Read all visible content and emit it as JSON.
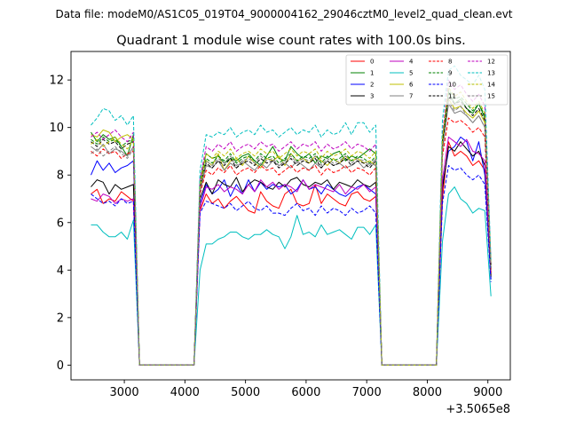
{
  "suptitle": "Data file: modeM0/AS1C05_019T04_9000004162_29046cztM0_level2_quad_clean.evt",
  "chart_data": {
    "type": "line",
    "title": "Quadrant 1 module wise count rates with 100.0s bins.",
    "xlabel": "",
    "ylabel": "",
    "x_offset_label": "+3.5065e8",
    "xlim": [
      2120,
      9370
    ],
    "ylim": [
      -0.62,
      13.2
    ],
    "xticks": [
      3000,
      4000,
      5000,
      6000,
      7000,
      8000,
      9000
    ],
    "xtick_labels": [
      "3000",
      "4000",
      "5000",
      "6000",
      "7000",
      "8000",
      "9000"
    ],
    "yticks": [
      0,
      2,
      4,
      6,
      8,
      10,
      12
    ],
    "ytick_labels": [
      "0",
      "2",
      "4",
      "6",
      "8",
      "10",
      "12"
    ],
    "legend": {
      "placement": "top-right",
      "columns": 4
    },
    "x": [
      2450,
      2550,
      2650,
      2750,
      2850,
      2950,
      3050,
      3150,
      3250,
      3350,
      3450,
      3550,
      3650,
      3750,
      3850,
      3950,
      4050,
      4150,
      4250,
      4350,
      4450,
      4550,
      4650,
      4750,
      4850,
      4950,
      5050,
      5150,
      5250,
      5350,
      5450,
      5550,
      5650,
      5750,
      5850,
      5950,
      6050,
      6150,
      6250,
      6350,
      6450,
      6550,
      6650,
      6750,
      6850,
      6950,
      7050,
      7150,
      7250,
      7350,
      7450,
      7550,
      7650,
      7750,
      7850,
      7950,
      8050,
      8150,
      8250,
      8350,
      8450,
      8550,
      8650,
      8750,
      8850,
      8950,
      9050
    ],
    "series": [
      {
        "name": "0",
        "color": "#ff0000",
        "dash": "solid",
        "values": [
          7.2,
          7.4,
          6.8,
          7.0,
          6.9,
          7.3,
          7.1,
          6.9,
          0,
          0,
          0,
          0,
          0,
          0,
          0,
          0,
          0,
          0,
          6.5,
          7.2,
          6.8,
          7.0,
          6.6,
          6.9,
          7.1,
          6.8,
          6.5,
          6.4,
          7.3,
          6.9,
          6.7,
          6.6,
          7.2,
          7.4,
          6.8,
          6.7,
          6.8,
          7.6,
          6.8,
          7.2,
          7.0,
          6.8,
          6.7,
          7.2,
          7.3,
          7.0,
          6.9,
          7.1,
          0,
          0,
          0,
          0,
          0,
          0,
          0,
          0,
          0,
          0,
          7.0,
          9.4,
          8.8,
          9.0,
          8.8,
          8.4,
          8.6,
          8.2,
          3.8
        ]
      },
      {
        "name": "1",
        "color": "#008000",
        "dash": "solid",
        "values": [
          9.8,
          9.4,
          9.7,
          9.5,
          9.6,
          9.2,
          8.8,
          9.7,
          0,
          0,
          0,
          0,
          0,
          0,
          0,
          0,
          0,
          0,
          7.8,
          8.9,
          8.7,
          8.8,
          8.5,
          8.7,
          8.6,
          8.8,
          8.9,
          8.6,
          8.4,
          8.8,
          9.2,
          8.7,
          8.6,
          9.2,
          8.9,
          8.7,
          8.9,
          8.5,
          8.8,
          8.7,
          8.9,
          9.0,
          8.6,
          8.8,
          8.7,
          8.9,
          9.1,
          8.9,
          0,
          0,
          0,
          0,
          0,
          0,
          0,
          0,
          0,
          0,
          9.5,
          11.5,
          11.0,
          11.2,
          10.8,
          10.6,
          11.0,
          10.4,
          4.0
        ]
      },
      {
        "name": "2",
        "color": "#0000ff",
        "dash": "solid",
        "values": [
          8.0,
          8.6,
          8.2,
          8.5,
          8.1,
          8.3,
          8.4,
          8.6,
          0,
          0,
          0,
          0,
          0,
          0,
          0,
          0,
          0,
          0,
          6.8,
          7.6,
          7.2,
          7.4,
          7.8,
          7.1,
          7.6,
          7.2,
          7.8,
          7.3,
          7.7,
          7.4,
          7.6,
          7.5,
          7.6,
          7.2,
          7.4,
          7.8,
          7.4,
          7.5,
          7.2,
          7.6,
          7.4,
          7.2,
          7.1,
          7.3,
          7.5,
          7.6,
          7.4,
          7.2,
          0,
          0,
          0,
          0,
          0,
          0,
          0,
          0,
          0,
          0,
          7.6,
          9.0,
          9.2,
          9.6,
          9.4,
          8.6,
          9.4,
          8.0,
          3.6
        ]
      },
      {
        "name": "3",
        "color": "#000000",
        "dash": "solid",
        "values": [
          7.5,
          7.8,
          7.7,
          7.2,
          7.6,
          7.4,
          7.5,
          7.6,
          0,
          0,
          0,
          0,
          0,
          0,
          0,
          0,
          0,
          0,
          7.0,
          7.7,
          7.2,
          7.8,
          7.6,
          7.5,
          7.9,
          7.3,
          7.6,
          7.8,
          7.7,
          7.5,
          7.4,
          7.7,
          7.5,
          7.8,
          7.9,
          7.6,
          7.5,
          7.7,
          7.6,
          7.8,
          7.4,
          7.7,
          7.6,
          7.5,
          7.8,
          7.6,
          7.5,
          7.7,
          0,
          0,
          0,
          0,
          0,
          0,
          0,
          0,
          0,
          0,
          7.4,
          9.2,
          9.0,
          9.4,
          9.1,
          8.8,
          9.0,
          8.4,
          3.7
        ]
      },
      {
        "name": "4",
        "color": "#bf00bf",
        "dash": "solid",
        "values": [
          7.0,
          6.9,
          7.2,
          7.1,
          6.8,
          7.0,
          6.9,
          7.0,
          0,
          0,
          0,
          0,
          0,
          0,
          0,
          0,
          0,
          0,
          6.6,
          7.5,
          7.4,
          7.6,
          7.3,
          7.5,
          7.4,
          7.2,
          7.6,
          7.3,
          7.8,
          7.5,
          7.7,
          7.4,
          7.6,
          7.5,
          7.3,
          7.8,
          7.4,
          7.6,
          7.5,
          7.4,
          7.3,
          7.6,
          7.2,
          7.5,
          7.4,
          7.6,
          7.3,
          7.5,
          0,
          0,
          0,
          0,
          0,
          0,
          0,
          0,
          0,
          0,
          7.8,
          9.6,
          9.4,
          9.2,
          9.5,
          9.0,
          8.9,
          8.6,
          3.9
        ]
      },
      {
        "name": "5",
        "color": "#00bfbf",
        "dash": "solid",
        "values": [
          5.9,
          5.9,
          5.6,
          5.4,
          5.4,
          5.6,
          5.3,
          6.1,
          0,
          0,
          0,
          0,
          0,
          0,
          0,
          0,
          0,
          0,
          4.0,
          5.1,
          5.1,
          5.3,
          5.4,
          5.6,
          5.6,
          5.4,
          5.3,
          5.5,
          5.5,
          5.7,
          5.5,
          5.4,
          4.9,
          5.4,
          6.3,
          5.5,
          5.6,
          5.4,
          5.9,
          5.5,
          5.6,
          5.7,
          5.5,
          5.3,
          5.8,
          5.8,
          5.5,
          5.9,
          0,
          0,
          0,
          0,
          0,
          0,
          0,
          0,
          0,
          0,
          5.2,
          7.2,
          7.5,
          7.0,
          6.8,
          6.4,
          6.6,
          6.5,
          2.9
        ]
      },
      {
        "name": "6",
        "color": "#bfbf00",
        "dash": "solid",
        "values": [
          9.7,
          9.6,
          9.9,
          9.8,
          9.4,
          9.6,
          9.7,
          9.5,
          0,
          0,
          0,
          0,
          0,
          0,
          0,
          0,
          0,
          0,
          7.5,
          8.6,
          8.4,
          8.9,
          8.2,
          8.6,
          8.7,
          8.4,
          8.8,
          8.5,
          8.3,
          8.7,
          8.6,
          8.8,
          8.4,
          8.9,
          8.6,
          8.7,
          8.5,
          8.8,
          8.6,
          8.4,
          8.7,
          8.5,
          8.8,
          8.6,
          8.7,
          8.5,
          8.6,
          8.4,
          0,
          0,
          0,
          0,
          0,
          0,
          0,
          0,
          0,
          0,
          9.2,
          11.2,
          10.8,
          10.9,
          10.6,
          10.4,
          10.7,
          10.2,
          4.1
        ]
      },
      {
        "name": "7",
        "color": "#808080",
        "dash": "solid",
        "values": [
          9.2,
          9.0,
          9.3,
          8.9,
          9.1,
          9.0,
          8.8,
          9.2,
          0,
          0,
          0,
          0,
          0,
          0,
          0,
          0,
          0,
          0,
          7.3,
          8.4,
          8.3,
          8.6,
          8.2,
          8.5,
          8.3,
          8.6,
          8.4,
          8.2,
          8.5,
          8.3,
          8.6,
          8.4,
          8.5,
          8.3,
          8.6,
          8.4,
          8.2,
          8.5,
          8.3,
          8.6,
          8.4,
          8.5,
          8.3,
          8.4,
          8.6,
          8.3,
          8.5,
          8.4,
          0,
          0,
          0,
          0,
          0,
          0,
          0,
          0,
          0,
          0,
          9.0,
          11.0,
          10.6,
          10.7,
          10.5,
          10.2,
          10.5,
          10.0,
          4.0
        ]
      },
      {
        "name": "8",
        "color": "#ff0000",
        "dash": "dashed",
        "values": [
          9.0,
          8.8,
          9.1,
          8.9,
          9.0,
          8.7,
          8.9,
          9.0,
          0,
          0,
          0,
          0,
          0,
          0,
          0,
          0,
          0,
          0,
          7.2,
          8.2,
          8.0,
          8.3,
          8.1,
          8.4,
          8.0,
          8.2,
          8.3,
          8.1,
          8.4,
          8.2,
          8.3,
          8.0,
          8.2,
          8.4,
          8.1,
          8.3,
          8.2,
          8.4,
          8.0,
          8.3,
          8.1,
          8.2,
          8.4,
          8.1,
          8.3,
          8.2,
          8.0,
          8.3,
          0,
          0,
          0,
          0,
          0,
          0,
          0,
          0,
          0,
          0,
          8.8,
          10.4,
          10.2,
          10.3,
          10.1,
          9.8,
          10.0,
          9.6,
          3.9
        ]
      },
      {
        "name": "9",
        "color": "#008000",
        "dash": "dashed",
        "values": [
          9.5,
          9.3,
          9.6,
          9.4,
          9.5,
          9.2,
          9.4,
          9.5,
          0,
          0,
          0,
          0,
          0,
          0,
          0,
          0,
          0,
          0,
          7.6,
          8.7,
          8.5,
          8.8,
          8.6,
          8.9,
          8.5,
          8.7,
          8.8,
          8.6,
          8.9,
          8.7,
          8.8,
          8.5,
          8.7,
          8.9,
          8.6,
          8.8,
          8.7,
          8.9,
          8.5,
          8.8,
          8.6,
          8.7,
          8.9,
          8.6,
          8.8,
          8.7,
          8.5,
          8.8,
          0,
          0,
          0,
          0,
          0,
          0,
          0,
          0,
          0,
          0,
          9.4,
          11.6,
          11.2,
          11.3,
          11.0,
          10.7,
          11.0,
          10.5,
          4.2
        ]
      },
      {
        "name": "10",
        "color": "#0000ff",
        "dash": "dashed",
        "values": [
          7.2,
          7.0,
          6.8,
          6.9,
          6.7,
          7.0,
          6.8,
          6.9,
          0,
          0,
          0,
          0,
          0,
          0,
          0,
          0,
          0,
          0,
          6.4,
          6.9,
          6.8,
          6.7,
          6.6,
          6.8,
          6.5,
          6.7,
          6.9,
          6.6,
          6.5,
          6.7,
          6.4,
          6.4,
          6.3,
          6.6,
          6.8,
          6.5,
          6.6,
          6.3,
          6.7,
          6.4,
          6.6,
          6.5,
          6.3,
          6.6,
          6.4,
          6.5,
          6.7,
          6.4,
          0,
          0,
          0,
          0,
          0,
          0,
          0,
          0,
          0,
          0,
          6.8,
          8.4,
          8.2,
          8.3,
          8.0,
          7.8,
          8.0,
          7.6,
          3.5
        ]
      },
      {
        "name": "11",
        "color": "#000000",
        "dash": "dashed",
        "values": [
          9.4,
          9.2,
          9.5,
          9.3,
          9.4,
          9.1,
          9.3,
          9.4,
          0,
          0,
          0,
          0,
          0,
          0,
          0,
          0,
          0,
          0,
          7.5,
          8.5,
          8.3,
          8.6,
          8.4,
          8.7,
          8.3,
          8.5,
          8.6,
          8.4,
          8.7,
          8.5,
          8.6,
          8.3,
          8.5,
          8.7,
          8.4,
          8.6,
          8.5,
          8.7,
          8.3,
          8.6,
          8.4,
          8.5,
          8.7,
          8.4,
          8.6,
          8.5,
          8.3,
          8.6,
          0,
          0,
          0,
          0,
          0,
          0,
          0,
          0,
          0,
          0,
          9.3,
          11.3,
          11.0,
          11.1,
          10.8,
          10.5,
          10.8,
          10.3,
          4.1
        ]
      },
      {
        "name": "12",
        "color": "#bf00bf",
        "dash": "dashed",
        "values": [
          9.6,
          9.8,
          9.5,
          9.7,
          9.9,
          9.6,
          9.4,
          9.8,
          0,
          0,
          0,
          0,
          0,
          0,
          0,
          0,
          0,
          0,
          7.8,
          9.2,
          9.0,
          9.3,
          9.1,
          9.4,
          9.0,
          9.2,
          9.3,
          9.1,
          9.4,
          9.2,
          9.3,
          9.0,
          9.2,
          9.4,
          9.1,
          9.3,
          9.2,
          9.4,
          9.0,
          9.3,
          9.1,
          9.2,
          9.4,
          9.1,
          9.3,
          9.2,
          9.0,
          9.3,
          0,
          0,
          0,
          0,
          0,
          0,
          0,
          0,
          0,
          0,
          9.7,
          12.0,
          11.6,
          11.8,
          11.4,
          11.1,
          11.4,
          10.9,
          4.3
        ]
      },
      {
        "name": "13",
        "color": "#00bfbf",
        "dash": "dashed",
        "values": [
          10.1,
          10.4,
          10.8,
          10.7,
          10.3,
          10.5,
          10.1,
          10.5,
          0,
          0,
          0,
          0,
          0,
          0,
          0,
          0,
          0,
          0,
          8.2,
          9.7,
          9.6,
          9.8,
          9.7,
          10.0,
          9.6,
          9.8,
          9.9,
          9.7,
          10.1,
          9.8,
          9.9,
          9.6,
          9.8,
          10.0,
          9.7,
          9.9,
          9.8,
          10.1,
          9.6,
          9.9,
          9.7,
          9.8,
          10.2,
          9.7,
          10.2,
          10.2,
          9.8,
          10.1,
          0,
          0,
          0,
          0,
          0,
          0,
          0,
          0,
          0,
          0,
          10.3,
          12.4,
          12.6,
          12.2,
          12.0,
          11.8,
          12.2,
          11.6,
          4.4
        ]
      },
      {
        "name": "14",
        "color": "#bfbf00",
        "dash": "dashed",
        "values": [
          9.3,
          9.5,
          9.2,
          9.4,
          9.6,
          9.3,
          9.1,
          9.5,
          0,
          0,
          0,
          0,
          0,
          0,
          0,
          0,
          0,
          0,
          7.6,
          8.9,
          8.7,
          9.0,
          8.8,
          9.1,
          8.7,
          8.9,
          9.0,
          8.8,
          9.1,
          8.9,
          9.0,
          8.7,
          8.9,
          9.1,
          8.8,
          9.0,
          8.9,
          9.1,
          8.7,
          9.0,
          8.8,
          8.9,
          9.1,
          8.8,
          9.0,
          8.9,
          8.7,
          9.0,
          0,
          0,
          0,
          0,
          0,
          0,
          0,
          0,
          0,
          0,
          9.5,
          11.7,
          11.3,
          11.5,
          11.1,
          10.8,
          11.1,
          10.6,
          4.2
        ]
      },
      {
        "name": "15",
        "color": "#808080",
        "dash": "dashed",
        "values": [
          8.9,
          9.1,
          8.8,
          9.0,
          9.2,
          8.9,
          8.7,
          9.1,
          0,
          0,
          0,
          0,
          0,
          0,
          0,
          0,
          0,
          0,
          7.3,
          8.6,
          8.4,
          8.7,
          8.5,
          8.8,
          8.4,
          8.6,
          8.7,
          8.5,
          8.8,
          8.6,
          8.7,
          8.4,
          8.6,
          8.8,
          8.5,
          8.7,
          8.6,
          8.8,
          8.4,
          8.7,
          8.5,
          8.6,
          8.8,
          8.5,
          8.7,
          8.6,
          8.4,
          8.7,
          0,
          0,
          0,
          0,
          0,
          0,
          0,
          0,
          0,
          0,
          9.1,
          11.1,
          10.7,
          10.9,
          10.5,
          10.2,
          10.5,
          10.0,
          4.0
        ]
      }
    ]
  }
}
